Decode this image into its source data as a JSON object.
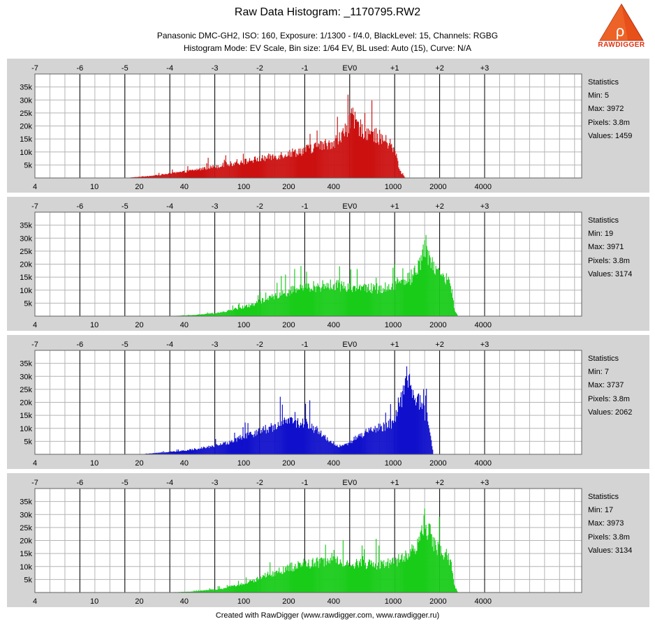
{
  "header": {
    "title": "Raw Data Histogram: _1170795.RW2",
    "line1": "Panasonic DMC-GH2, ISO: 160, Exposure: 1/1300 - f/4.0, BlackLevel: 15, Channels: RGBG",
    "line2": "Histogram Mode: EV Scale, Bin size: 1/64 EV, BL used: Auto (15), Curve: N/A",
    "logo_text": "RAWDIGGER"
  },
  "footer": {
    "text": "Created with RawDigger (www.rawdigger.com, www.rawdigger.ru)"
  },
  "colors": {
    "panel_bg": "#d4d4d4",
    "plot_bg": "#ffffff",
    "grid_minor": "#b4b4b4",
    "grid_major": "#000000",
    "red": "#cc1111",
    "green": "#19cc19",
    "blue": "#1111cc"
  },
  "chart_data": [
    {
      "type": "area",
      "channel": "R",
      "color": "#cc1111",
      "x_scale": "log2",
      "ev_ticks": [
        "-7",
        "-6",
        "-5",
        "-4",
        "-3",
        "-2",
        "-1",
        "EV0",
        "+1",
        "+2",
        "+3"
      ],
      "raw_ticks": [
        4,
        10,
        20,
        40,
        100,
        200,
        400,
        1000,
        2000,
        4000
      ],
      "y_ticks": [
        "35k",
        "30k",
        "25k",
        "20k",
        "15k",
        "10k",
        "5k"
      ],
      "ylim": [
        0,
        40000
      ],
      "stats": {
        "title": "Statistics",
        "min": "Min: 5",
        "max": "Max: 3972",
        "pixels": "Pixels: 3.8m",
        "values": "Values: 1459"
      },
      "profile": [
        [
          16,
          0
        ],
        [
          25,
          1000
        ],
        [
          40,
          2600
        ],
        [
          60,
          4500
        ],
        [
          100,
          6800
        ],
        [
          160,
          9000
        ],
        [
          250,
          11500
        ],
        [
          380,
          14500
        ],
        [
          450,
          17000
        ],
        [
          500,
          22000
        ],
        [
          530,
          25000
        ],
        [
          570,
          22000
        ],
        [
          620,
          20000
        ],
        [
          800,
          17000
        ],
        [
          950,
          14000
        ],
        [
          1050,
          9000
        ],
        [
          1100,
          3000
        ],
        [
          1200,
          0
        ]
      ]
    },
    {
      "type": "area",
      "channel": "G",
      "color": "#19cc19",
      "x_scale": "log2",
      "ev_ticks": [
        "-7",
        "-6",
        "-5",
        "-4",
        "-3",
        "-2",
        "-1",
        "EV0",
        "+1",
        "+2",
        "+3"
      ],
      "raw_ticks": [
        4,
        10,
        20,
        40,
        100,
        200,
        400,
        1000,
        2000,
        4000
      ],
      "y_ticks": [
        "35k",
        "30k",
        "25k",
        "20k",
        "15k",
        "10k",
        "5k"
      ],
      "ylim": [
        0,
        40000
      ],
      "stats": {
        "title": "Statistics",
        "min": "Min: 19",
        "max": "Max: 3971",
        "pixels": "Pixels: 3.8m",
        "values": "Values: 3174"
      },
      "profile": [
        [
          30,
          0
        ],
        [
          45,
          400
        ],
        [
          70,
          1500
        ],
        [
          110,
          4500
        ],
        [
          170,
          9000
        ],
        [
          250,
          12000
        ],
        [
          400,
          13000
        ],
        [
          550,
          12000
        ],
        [
          800,
          11500
        ],
        [
          1000,
          12500
        ],
        [
          1300,
          16000
        ],
        [
          1500,
          22000
        ],
        [
          1620,
          30000
        ],
        [
          1700,
          26000
        ],
        [
          1900,
          20000
        ],
        [
          2100,
          17000
        ],
        [
          2250,
          16000
        ],
        [
          2450,
          11000
        ],
        [
          2550,
          3000
        ],
        [
          2700,
          0
        ]
      ]
    },
    {
      "type": "area",
      "channel": "B",
      "color": "#1111cc",
      "x_scale": "log2",
      "ev_ticks": [
        "-7",
        "-6",
        "-5",
        "-4",
        "-3",
        "-2",
        "-1",
        "EV0",
        "+1",
        "+2",
        "+3"
      ],
      "raw_ticks": [
        4,
        10,
        20,
        40,
        100,
        200,
        400,
        1000,
        2000,
        4000
      ],
      "y_ticks": [
        "35k",
        "30k",
        "25k",
        "20k",
        "15k",
        "10k",
        "5k"
      ],
      "ylim": [
        0,
        40000
      ],
      "stats": {
        "title": "Statistics",
        "min": "Min: 7",
        "max": "Max: 3737",
        "pixels": "Pixels: 3.8m",
        "values": "Values: 2062"
      },
      "profile": [
        [
          20,
          0
        ],
        [
          40,
          1500
        ],
        [
          70,
          4000
        ],
        [
          120,
          9000
        ],
        [
          180,
          13000
        ],
        [
          220,
          13500
        ],
        [
          280,
          12000
        ],
        [
          350,
          7000
        ],
        [
          420,
          3500
        ],
        [
          480,
          3800
        ],
        [
          600,
          8000
        ],
        [
          800,
          11000
        ],
        [
          1000,
          13000
        ],
        [
          1100,
          20000
        ],
        [
          1180,
          28000
        ],
        [
          1230,
          33000
        ],
        [
          1300,
          27000
        ],
        [
          1500,
          21000
        ],
        [
          1700,
          15000
        ],
        [
          1780,
          6000
        ],
        [
          1850,
          0
        ]
      ]
    },
    {
      "type": "area",
      "channel": "G",
      "color": "#19cc19",
      "x_scale": "log2",
      "ev_ticks": [
        "-7",
        "-6",
        "-5",
        "-4",
        "-3",
        "-2",
        "-1",
        "EV0",
        "+1",
        "+2",
        "+3"
      ],
      "raw_ticks": [
        4,
        10,
        20,
        40,
        100,
        200,
        400,
        1000,
        2000,
        4000
      ],
      "y_ticks": [
        "35k",
        "30k",
        "25k",
        "20k",
        "15k",
        "10k",
        "5k"
      ],
      "ylim": [
        0,
        40000
      ],
      "stats": {
        "title": "Statistics",
        "min": "Min: 17",
        "max": "Max: 3973",
        "pixels": "Pixels: 3.8m",
        "values": "Values: 3134"
      },
      "profile": [
        [
          30,
          0
        ],
        [
          45,
          400
        ],
        [
          70,
          1500
        ],
        [
          110,
          4500
        ],
        [
          170,
          9000
        ],
        [
          250,
          12000
        ],
        [
          400,
          13000
        ],
        [
          550,
          12000
        ],
        [
          800,
          11500
        ],
        [
          1000,
          12500
        ],
        [
          1300,
          16000
        ],
        [
          1500,
          22000
        ],
        [
          1620,
          30000
        ],
        [
          1700,
          26000
        ],
        [
          1900,
          20000
        ],
        [
          2100,
          17000
        ],
        [
          2250,
          16000
        ],
        [
          2450,
          11000
        ],
        [
          2550,
          3000
        ],
        [
          2700,
          0
        ]
      ]
    }
  ]
}
